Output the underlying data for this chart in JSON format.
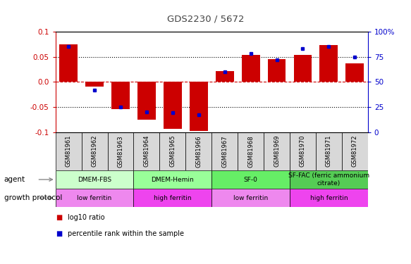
{
  "title": "GDS2230 / 5672",
  "samples": [
    "GSM81961",
    "GSM81962",
    "GSM81963",
    "GSM81964",
    "GSM81965",
    "GSM81966",
    "GSM81967",
    "GSM81968",
    "GSM81969",
    "GSM81970",
    "GSM81971",
    "GSM81972"
  ],
  "log10_ratio": [
    0.075,
    -0.01,
    -0.055,
    -0.075,
    -0.093,
    -0.098,
    0.022,
    0.053,
    0.045,
    0.053,
    0.073,
    0.037
  ],
  "percentile_rank": [
    85,
    42,
    25,
    20,
    19,
    17,
    60,
    78,
    72,
    83,
    85,
    75
  ],
  "ylim": [
    -0.1,
    0.1
  ],
  "yticks_left": [
    -0.1,
    -0.05,
    0.0,
    0.05,
    0.1
  ],
  "yticks_right": [
    0,
    25,
    50,
    75,
    100
  ],
  "bar_color": "#cc0000",
  "dot_color": "#0000cc",
  "agent_groups": [
    {
      "label": "DMEM-FBS",
      "start": 0,
      "end": 3,
      "color": "#ccffcc"
    },
    {
      "label": "DMEM-Hemin",
      "start": 3,
      "end": 6,
      "color": "#99ff99"
    },
    {
      "label": "SF-0",
      "start": 6,
      "end": 9,
      "color": "#66ee66"
    },
    {
      "label": "SF-FAC (ferric ammonium\ncitrate)",
      "start": 9,
      "end": 12,
      "color": "#55cc55"
    }
  ],
  "growth_groups": [
    {
      "label": "low ferritin",
      "start": 0,
      "end": 3,
      "color": "#ee88ee"
    },
    {
      "label": "high ferritin",
      "start": 3,
      "end": 6,
      "color": "#ee44ee"
    },
    {
      "label": "low ferritin",
      "start": 6,
      "end": 9,
      "color": "#ee88ee"
    },
    {
      "label": "high ferritin",
      "start": 9,
      "end": 12,
      "color": "#ee44ee"
    }
  ],
  "agent_label": "agent",
  "growth_label": "growth protocol",
  "legend_items": [
    {
      "label": "log10 ratio",
      "color": "#cc0000"
    },
    {
      "label": "percentile rank within the sample",
      "color": "#0000cc"
    }
  ],
  "left_axis_color": "#cc0000",
  "right_axis_color": "#0000cc",
  "bar_width": 0.7
}
